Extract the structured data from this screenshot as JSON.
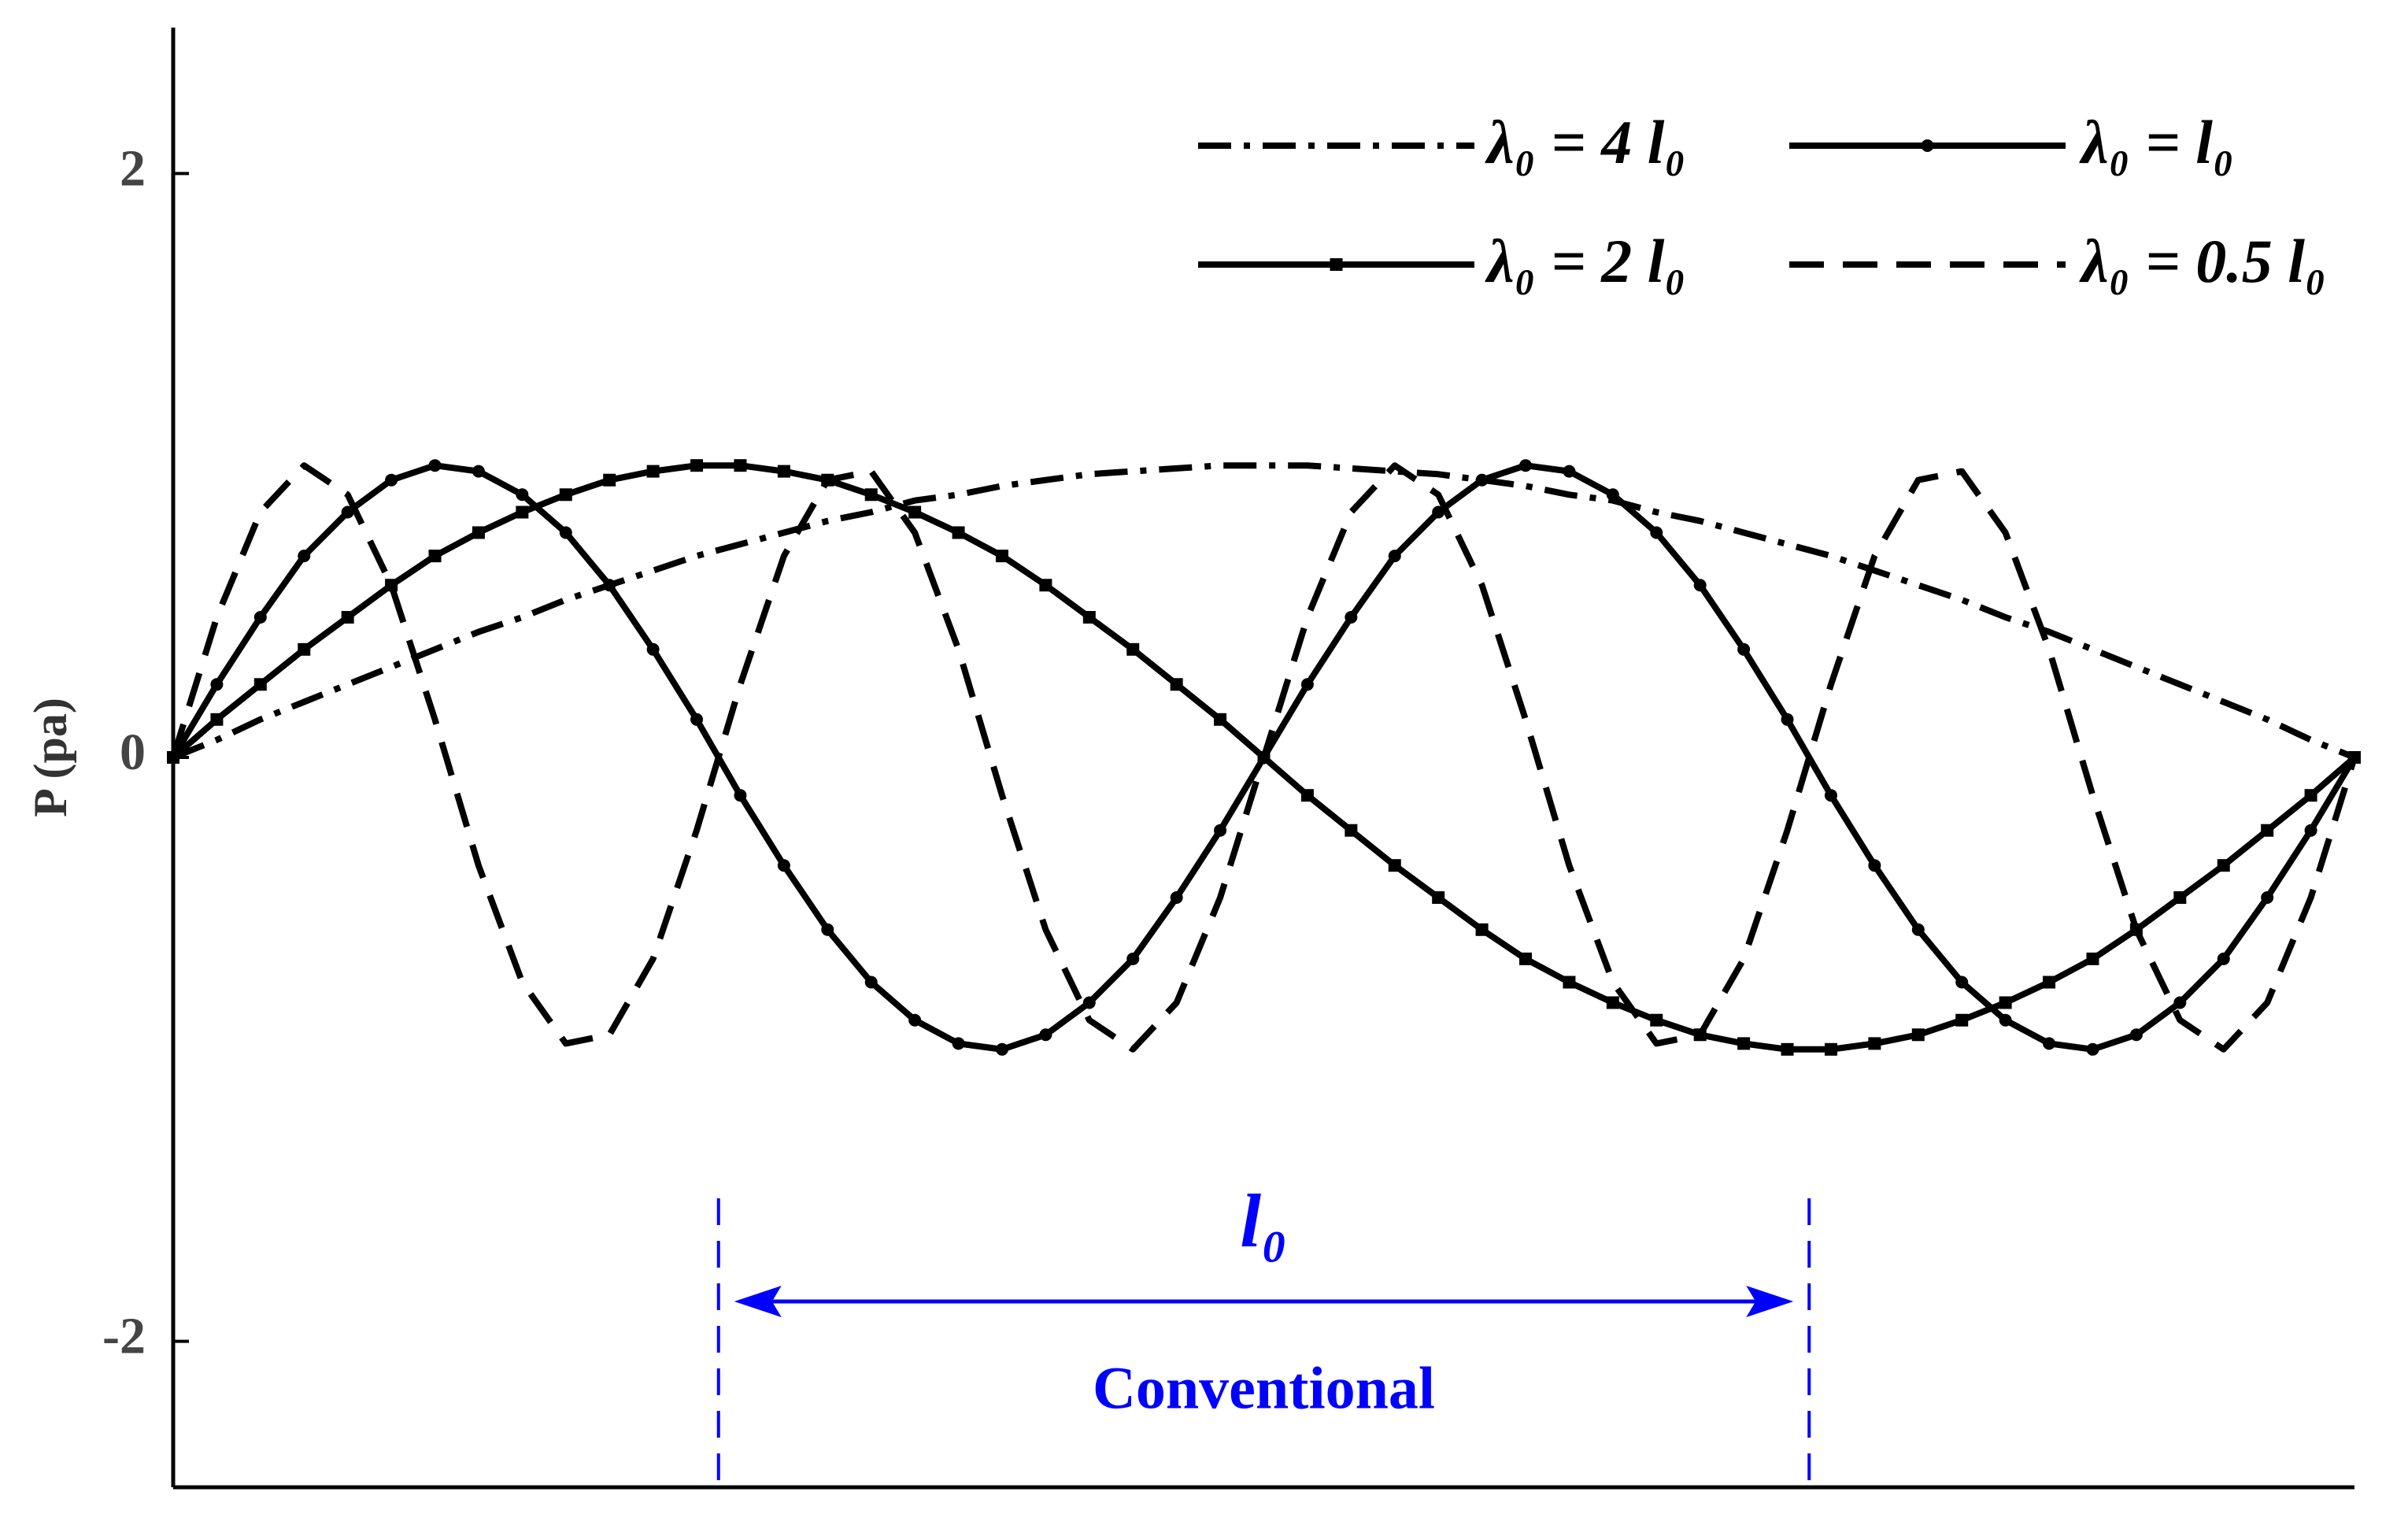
{
  "chart_data": {
    "type": "line",
    "y_label": "P (pa)",
    "x": [
      0,
      0.04,
      0.08,
      0.12,
      0.16,
      0.2,
      0.24,
      0.28,
      0.32,
      0.36,
      0.4,
      0.44,
      0.48,
      0.52,
      0.56,
      0.6,
      0.64,
      0.68,
      0.72,
      0.76,
      0.8,
      0.84,
      0.88,
      0.92,
      0.96,
      1,
      1.04,
      1.08,
      1.12,
      1.16,
      1.2,
      1.24,
      1.28,
      1.32,
      1.36,
      1.4,
      1.44,
      1.48,
      1.52,
      1.56,
      1.6,
      1.64,
      1.68,
      1.72,
      1.76,
      1.8,
      1.84,
      1.88,
      1.92,
      1.96,
      2
    ],
    "xlim": [
      0,
      2
    ],
    "ylim": [
      -2.5,
      2.5
    ],
    "yticks": [
      -2,
      0,
      2
    ],
    "grid": false,
    "legend": "top-right",
    "series": [
      {
        "name": "λ₀ = 4 l₀",
        "color": "#000000",
        "style": "dashdot",
        "marker": "none",
        "values": [
          0,
          0.06,
          0.13,
          0.19,
          0.25,
          0.31,
          0.37,
          0.43,
          0.48,
          0.54,
          0.59,
          0.64,
          0.69,
          0.73,
          0.77,
          0.81,
          0.84,
          0.88,
          0.9,
          0.93,
          0.95,
          0.97,
          0.98,
          0.99,
          1,
          1,
          1,
          0.99,
          0.98,
          0.97,
          0.95,
          0.93,
          0.9,
          0.88,
          0.84,
          0.81,
          0.77,
          0.73,
          0.69,
          0.64,
          0.59,
          0.54,
          0.48,
          0.43,
          0.37,
          0.31,
          0.25,
          0.19,
          0.13,
          0.06,
          0
        ]
      },
      {
        "name": "λ₀ = l₀",
        "color": "#000000",
        "style": "solid",
        "marker": "circle",
        "values": [
          0,
          0.25,
          0.48,
          0.69,
          0.84,
          0.95,
          1,
          0.98,
          0.9,
          0.77,
          0.59,
          0.37,
          0.13,
          -0.13,
          -0.37,
          -0.59,
          -0.77,
          -0.9,
          -0.98,
          -1,
          -0.95,
          -0.84,
          -0.69,
          -0.48,
          -0.25,
          0,
          0.25,
          0.48,
          0.69,
          0.84,
          0.95,
          1,
          0.98,
          0.9,
          0.77,
          0.59,
          0.37,
          0.13,
          -0.13,
          -0.37,
          -0.59,
          -0.77,
          -0.9,
          -0.98,
          -1,
          -0.95,
          -0.84,
          -0.69,
          -0.48,
          -0.25,
          0
        ]
      },
      {
        "name": "λ₀ = 2 l₀",
        "color": "#000000",
        "style": "solid",
        "marker": "square",
        "values": [
          0,
          0.13,
          0.25,
          0.37,
          0.48,
          0.59,
          0.69,
          0.77,
          0.84,
          0.9,
          0.95,
          0.98,
          1,
          1,
          0.98,
          0.95,
          0.9,
          0.84,
          0.77,
          0.69,
          0.59,
          0.48,
          0.37,
          0.25,
          0.13,
          0,
          -0.13,
          -0.25,
          -0.37,
          -0.48,
          -0.59,
          -0.69,
          -0.77,
          -0.84,
          -0.9,
          -0.95,
          -0.98,
          -1,
          -1,
          -0.98,
          -0.95,
          -0.9,
          -0.84,
          -0.77,
          -0.69,
          -0.59,
          -0.48,
          -0.37,
          -0.25,
          -0.13,
          0
        ]
      },
      {
        "name": "λ₀ = 0.5 l₀",
        "color": "#000000",
        "style": "dashed",
        "marker": "none",
        "values": [
          0,
          0.48,
          0.84,
          1,
          0.9,
          0.59,
          0.13,
          -0.37,
          -0.77,
          -0.98,
          -0.95,
          -0.69,
          -0.25,
          0.25,
          0.69,
          0.95,
          0.98,
          0.77,
          0.37,
          -0.13,
          -0.59,
          -0.9,
          -1,
          -0.84,
          -0.48,
          0,
          0.48,
          0.84,
          1,
          0.9,
          0.59,
          0.13,
          -0.37,
          -0.77,
          -0.98,
          -0.95,
          -0.69,
          -0.25,
          0.25,
          0.69,
          0.95,
          0.98,
          0.77,
          0.37,
          -0.13,
          -0.59,
          -0.9,
          -1,
          -0.84,
          -0.48,
          0
        ]
      }
    ],
    "span": {
      "x": [
        0.5,
        1.5
      ],
      "label": "l₀",
      "text": "Conventional",
      "color": "#0000ff"
    }
  }
}
